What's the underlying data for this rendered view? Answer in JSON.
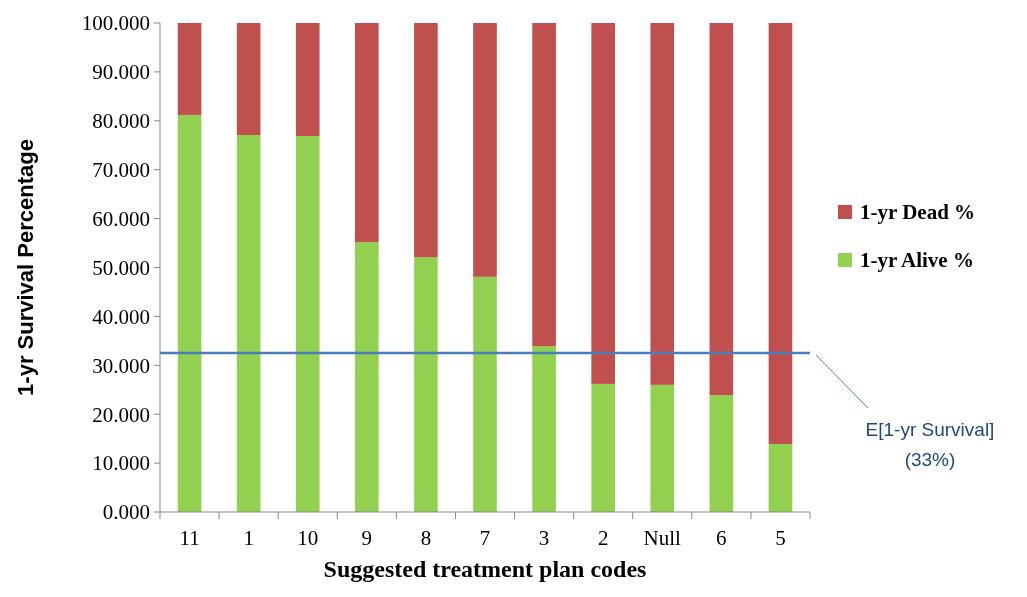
{
  "chart_data": {
    "type": "bar",
    "stacked": true,
    "xlabel": "Suggested treatment plan codes",
    "ylabel": "1-yr Survival Percentage",
    "categories": [
      "11",
      "1",
      "10",
      "9",
      "8",
      "7",
      "3",
      "2",
      "Null",
      "6",
      "5"
    ],
    "series": [
      {
        "name": "1-yr Alive %",
        "color": "#92d050",
        "values": [
          81.2,
          77.1,
          76.9,
          55.2,
          52.1,
          48.1,
          33.9,
          26.2,
          26.0,
          23.9,
          13.9
        ]
      },
      {
        "name": "1-yr Dead %",
        "color": "#c0504d",
        "values": [
          18.8,
          22.9,
          23.1,
          44.8,
          47.9,
          51.9,
          66.1,
          73.8,
          74.0,
          76.1,
          86.1
        ]
      }
    ],
    "ylim": [
      0,
      100
    ],
    "yticks": [
      {
        "value": 0,
        "label": "0.000"
      },
      {
        "value": 10,
        "label": "10.000"
      },
      {
        "value": 20,
        "label": "20.000"
      },
      {
        "value": 30,
        "label": "30.000"
      },
      {
        "value": 40,
        "label": "40.000"
      },
      {
        "value": 50,
        "label": "50.000"
      },
      {
        "value": 60,
        "label": "60.000"
      },
      {
        "value": 70,
        "label": "70.000"
      },
      {
        "value": 80,
        "label": "80.000"
      },
      {
        "value": 90,
        "label": "90.000"
      },
      {
        "value": 100,
        "label": "100.000"
      }
    ],
    "ref_lines": [
      {
        "axis": "y",
        "value": 32.5,
        "label": "E[1-yr Survival] (33%)",
        "color": "#4a7ebb"
      }
    ],
    "legend": "right",
    "grid": false
  }
}
